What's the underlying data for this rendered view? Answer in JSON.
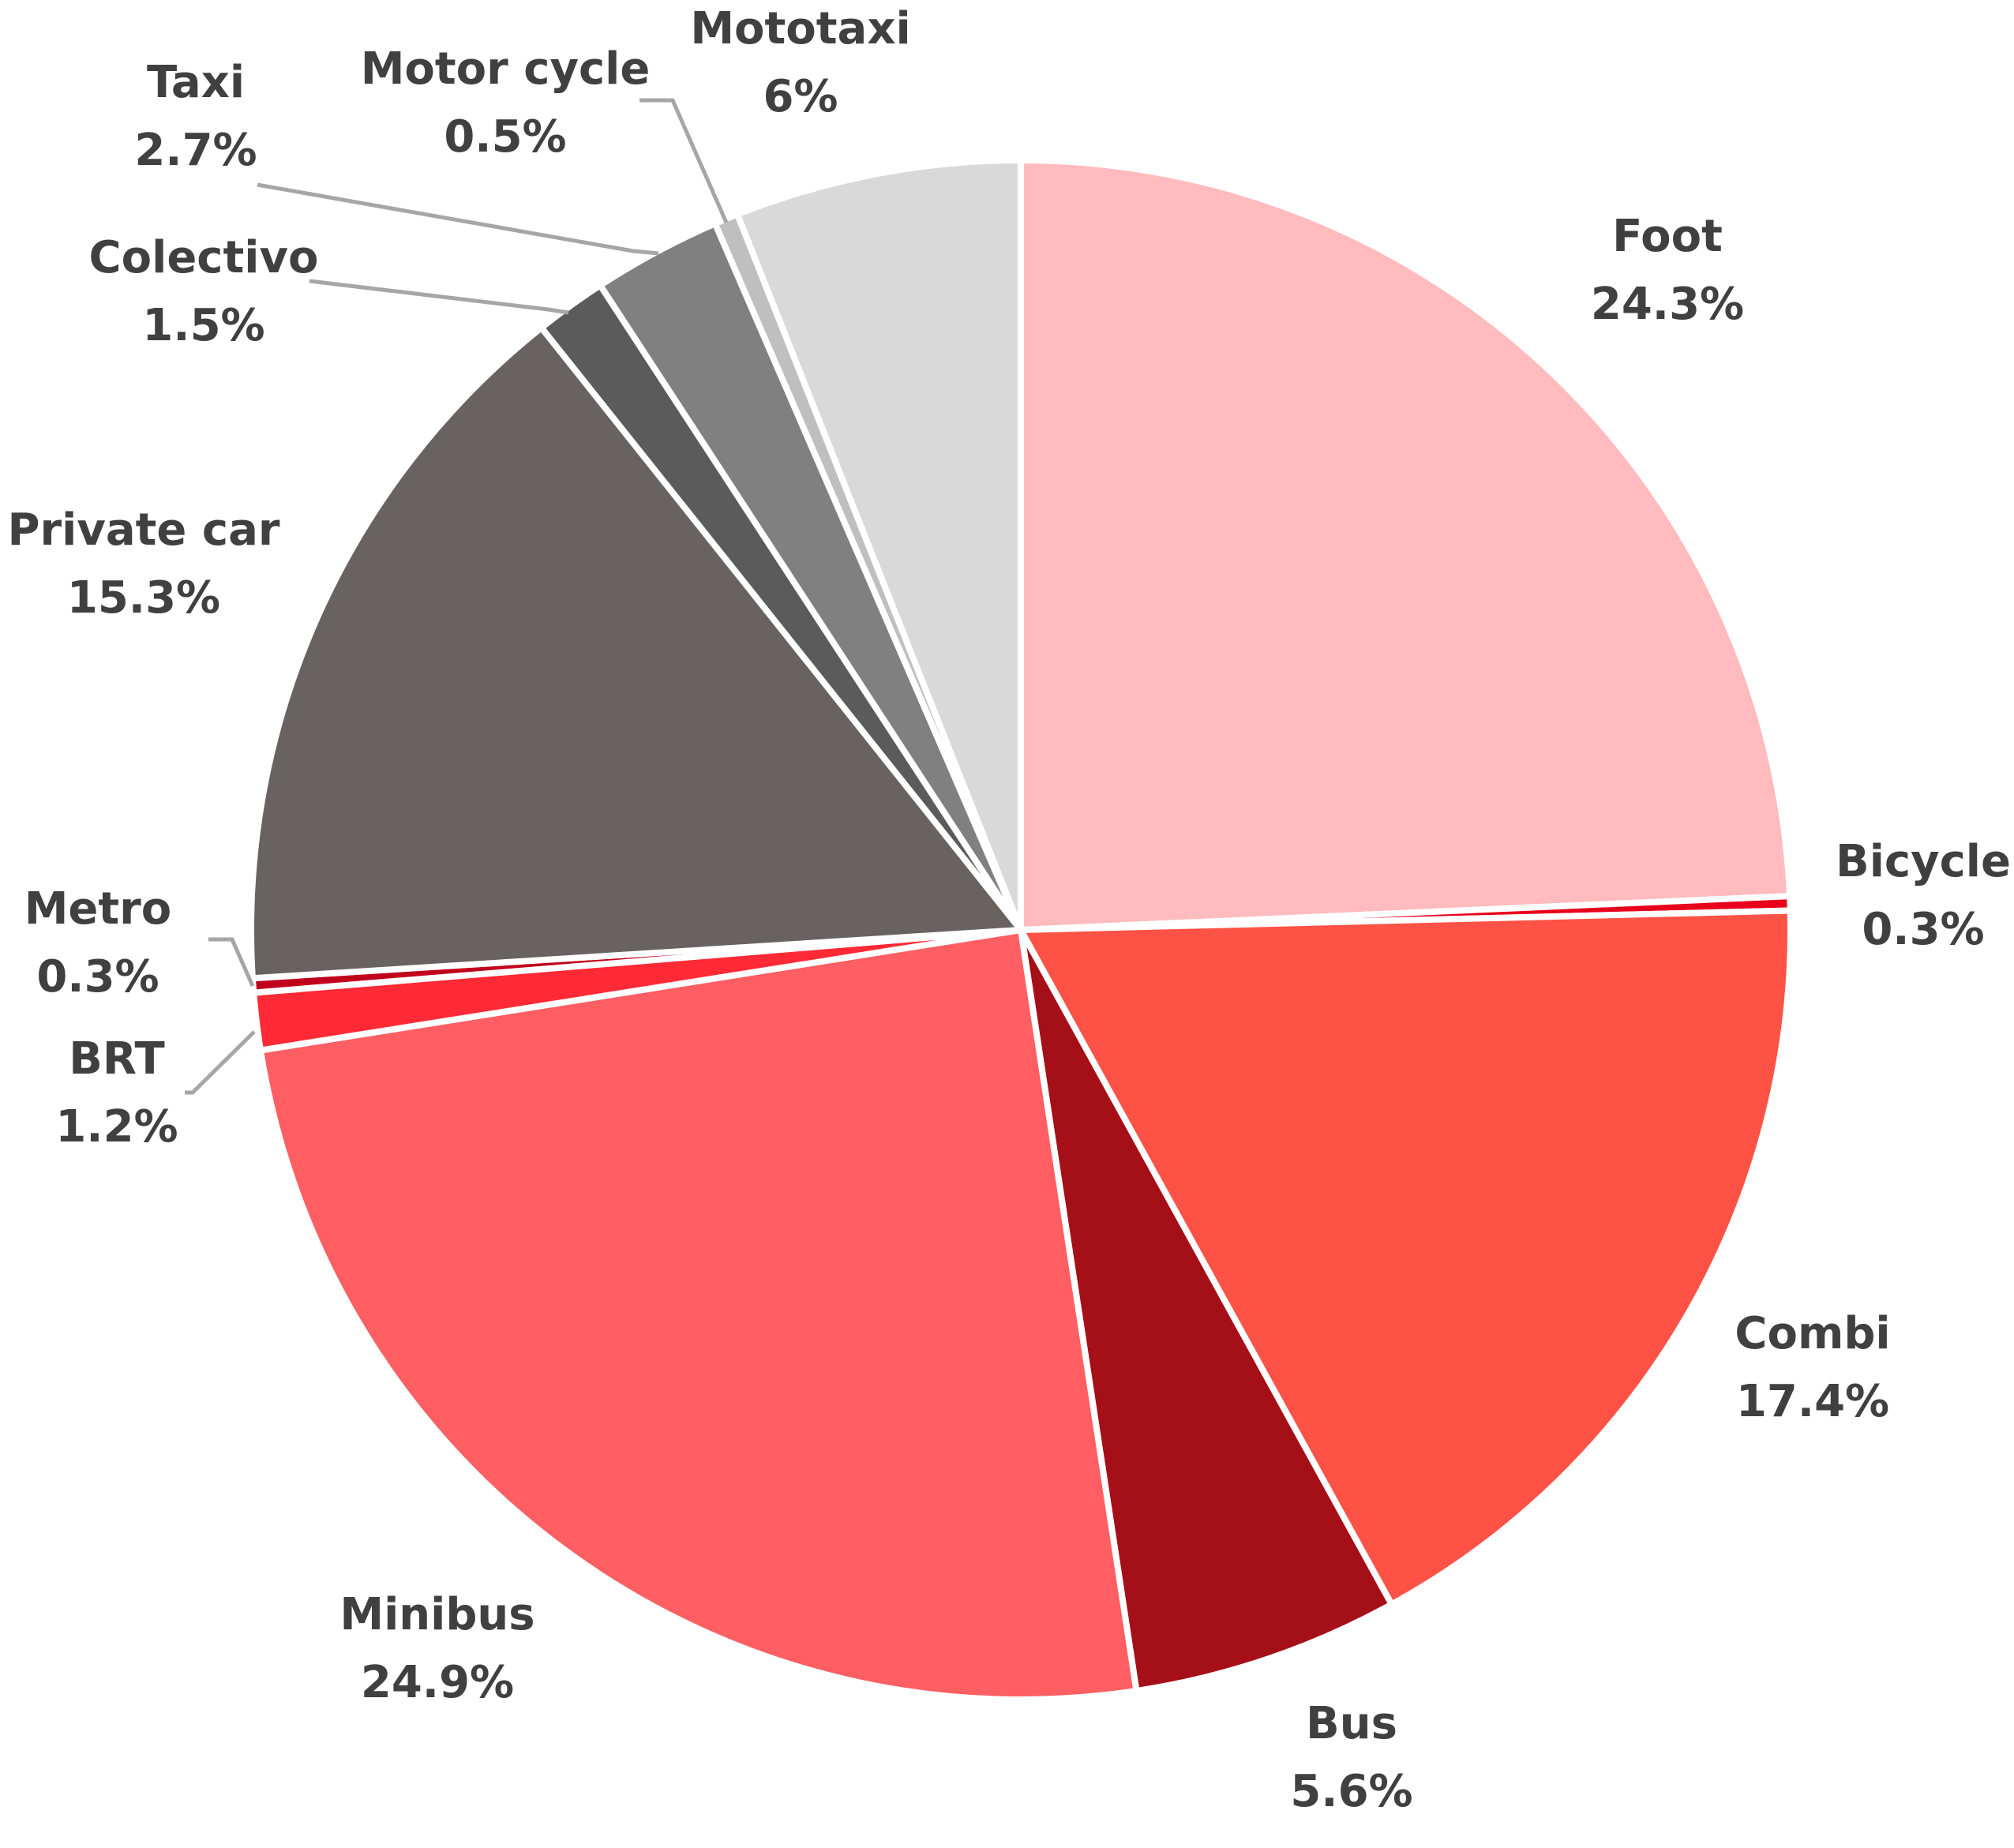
{
  "chart_data": {
    "type": "pie",
    "title": "",
    "start_angle_deg": 0,
    "direction": "clockwise",
    "slices": [
      {
        "label": "Foot",
        "value": 24.3,
        "display": "24.3%",
        "color": "#ffbbbd"
      },
      {
        "label": "Bicycle",
        "value": 0.3,
        "display": "0.3%",
        "color": "#e8001c"
      },
      {
        "label": "Combi",
        "value": 17.4,
        "display": "17.4%",
        "color": "#ff5246"
      },
      {
        "label": "Bus",
        "value": 5.6,
        "display": "5.6%",
        "color": "#a50f18"
      },
      {
        "label": "Minibus",
        "value": 24.9,
        "display": "24.9%",
        "color": "#ff5e63"
      },
      {
        "label": "BRT",
        "value": 1.2,
        "display": "1.2%",
        "color": "#ff2a36"
      },
      {
        "label": "Metro",
        "value": 0.3,
        "display": "0.3%",
        "color": "#c0001c"
      },
      {
        "label": "Private car",
        "value": 15.3,
        "display": "15.3%",
        "color": "#686261"
      },
      {
        "label": "Colectivo",
        "value": 1.5,
        "display": "1.5%",
        "color": "#5b5b5b"
      },
      {
        "label": "Taxi",
        "value": 2.7,
        "display": "2.7%",
        "color": "#808080"
      },
      {
        "label": "Motor cycle",
        "value": 0.5,
        "display": "0.5%",
        "color": "#bfbfbf"
      },
      {
        "label": "Mototaxi",
        "value": 6,
        "display": "6%",
        "color": "#d9d9d9"
      }
    ],
    "legend": "none",
    "labels": "outside with leader lines for small slices"
  }
}
